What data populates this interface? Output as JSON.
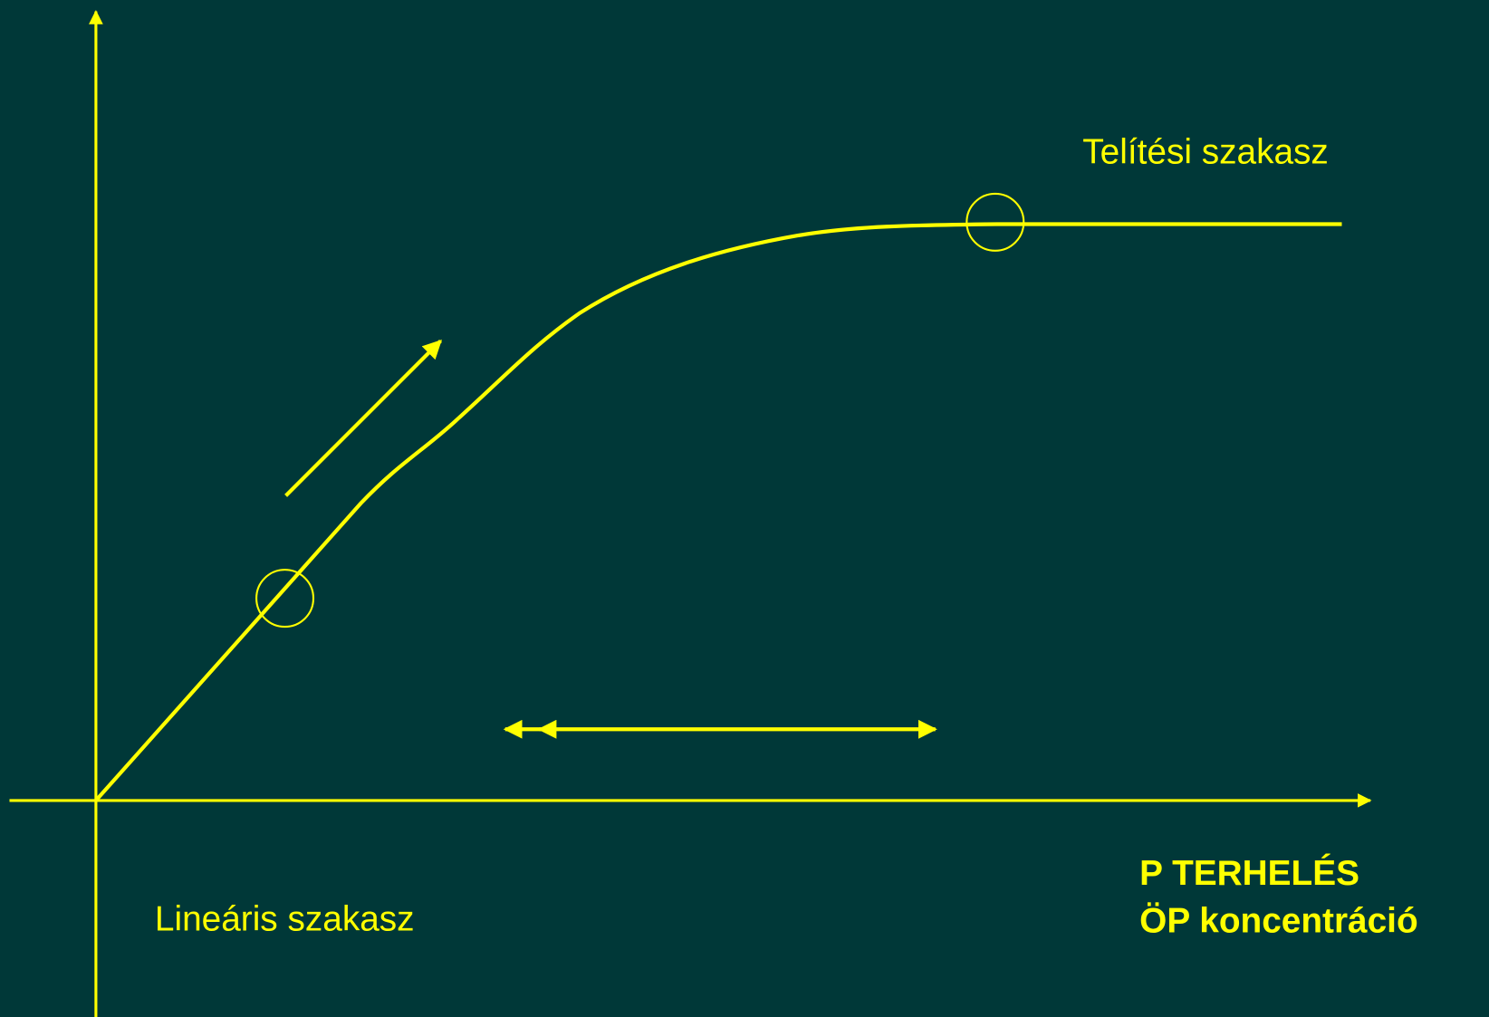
{
  "annotations": {
    "saturation": "Telítési szakasz",
    "linear": "Lineáris szakasz"
  },
  "x_axis_label": [
    "P TERHELÉS",
    "ÖP koncentráció"
  ]
}
